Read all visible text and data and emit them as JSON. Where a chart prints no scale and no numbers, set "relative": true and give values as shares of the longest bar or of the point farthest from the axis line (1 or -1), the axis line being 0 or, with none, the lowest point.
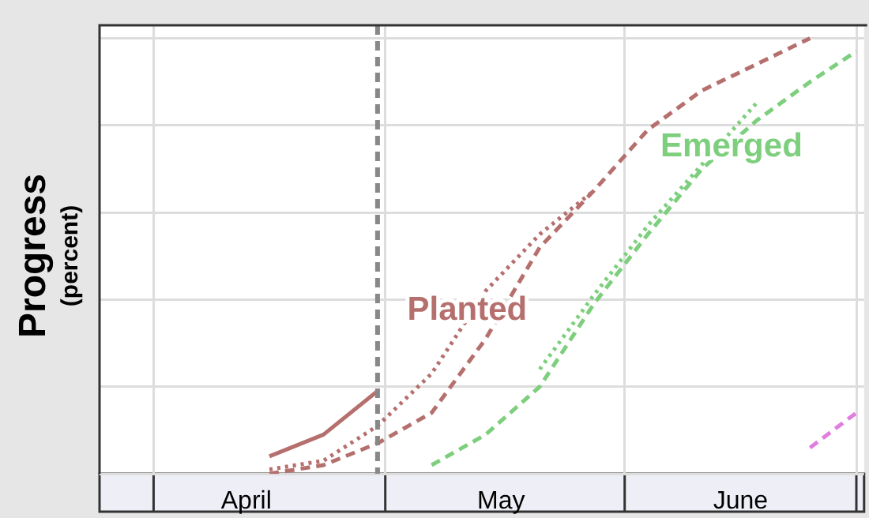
{
  "chart_data": {
    "type": "line",
    "relative": true,
    "ylabel": "Progress\n(percent)",
    "grid": true,
    "legend": false,
    "marker": "none",
    "xlim": [
      "--03-25",
      "--07-02"
    ],
    "xticks": [
      {
        "value": "--04-01",
        "label": null
      },
      {
        "value": "--04-13",
        "label": "April"
      },
      {
        "value": "--05-01",
        "label": null
      },
      {
        "value": "--05-16",
        "label": "May"
      },
      {
        "value": "--06-01",
        "label": null
      },
      {
        "value": "--06-16",
        "label": "June"
      },
      {
        "value": "--07-01",
        "label": null
      }
    ],
    "ref_lines": [
      {
        "axis": "x",
        "value": "--04-30",
        "color": "#888888",
        "line_style": "dashed"
      }
    ],
    "series": [
      {
        "color": "#b5706e",
        "line_style": "solid",
        "x": [
          "--04-16",
          "--04-23",
          "--04-30"
        ],
        "values": [
          0.04,
          0.09,
          0.19
        ]
      },
      {
        "color": "#b5706e",
        "line_style": "dotted",
        "x": [
          "--04-16",
          "--04-23",
          "--04-30",
          "--05-07",
          "--05-14",
          "--05-21",
          "--05-28"
        ],
        "values": [
          0.01,
          0.03,
          0.11,
          0.23,
          0.42,
          0.55,
          0.65
        ]
      },
      {
        "name": "Planted",
        "color": "#b5706e",
        "line_style": "dashed",
        "x": [
          "--04-16",
          "--04-23",
          "--04-30",
          "--05-07",
          "--05-14",
          "--05-21",
          "--05-28",
          "--06-04",
          "--06-11",
          "--06-18",
          "--06-25"
        ],
        "values": [
          0.0,
          0.02,
          0.07,
          0.14,
          0.31,
          0.52,
          0.65,
          0.79,
          0.88,
          0.94,
          1
        ]
      },
      {
        "color": "#7dcf7d",
        "line_style": "dotted",
        "x": [
          "--05-21",
          "--05-28",
          "--06-04",
          "--06-11",
          "--06-18"
        ],
        "values": [
          0.24,
          0.41,
          0.57,
          0.71,
          0.85
        ]
      },
      {
        "name": "Emerged",
        "color": "#7dcf7d",
        "line_style": "dashed",
        "x": [
          "--05-07",
          "--05-14",
          "--05-21",
          "--05-28",
          "--06-04",
          "--06-11",
          "--06-18",
          "--06-25",
          "--07-01"
        ],
        "values": [
          0.02,
          0.09,
          0.2,
          0.39,
          0.55,
          0.7,
          0.81,
          0.9,
          0.97
        ]
      },
      {
        "color": "#e07ee0",
        "line_style": "dashed",
        "x": [
          "--06-25",
          "--07-01"
        ],
        "values": [
          0.06,
          0.14
        ]
      }
    ]
  }
}
